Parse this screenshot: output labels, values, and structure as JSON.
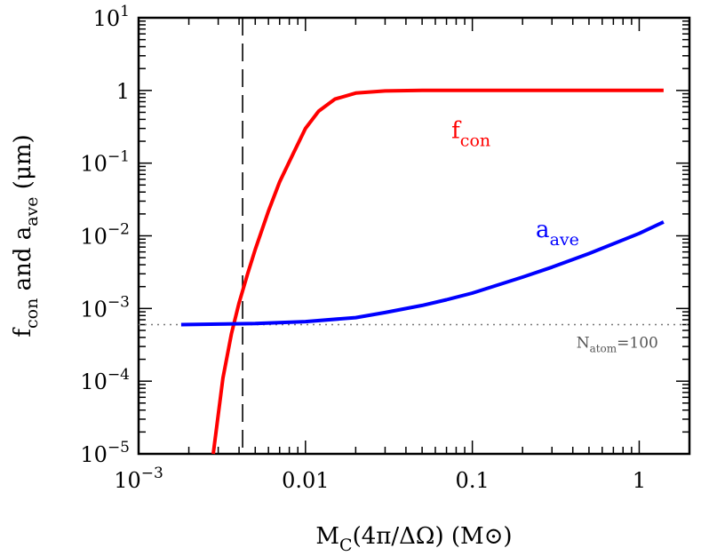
{
  "chart_data": {
    "type": "line",
    "title": "",
    "xlabel": {
      "base": "M",
      "sub": "C",
      "rest": "(4π/ΔΩ) (M",
      "sun": "⊙",
      "close": ")"
    },
    "ylabel": {
      "f": "f",
      "f_sub": "con",
      "mid": " and a",
      "a_sub": "ave",
      "unit": " (μm)"
    },
    "x_scale": "log",
    "y_scale": "log",
    "xlim": [
      0.001,
      2.0
    ],
    "ylim": [
      1e-05,
      10
    ],
    "x_ticks": [
      {
        "value": 0.001,
        "base": "10",
        "exp": "−3"
      },
      {
        "value": 0.01,
        "label": "0.01"
      },
      {
        "value": 0.1,
        "label": "0.1"
      },
      {
        "value": 1,
        "label": "1"
      }
    ],
    "y_ticks": [
      {
        "value": 1e-05,
        "base": "10",
        "exp": "−5"
      },
      {
        "value": 0.0001,
        "base": "10",
        "exp": "−4"
      },
      {
        "value": 0.001,
        "base": "10",
        "exp": "−3"
      },
      {
        "value": 0.01,
        "base": "10",
        "exp": "−2"
      },
      {
        "value": 0.1,
        "base": "10",
        "exp": "−1"
      },
      {
        "value": 1,
        "label": "1"
      },
      {
        "value": 10,
        "base": "10",
        "exp": "1"
      }
    ],
    "series": [
      {
        "label_base": "f",
        "label_sub": "con",
        "color": "#ff0000",
        "label_at": [
          0.075,
          0.22
        ],
        "x": [
          0.0028,
          0.0032,
          0.0036,
          0.004,
          0.0045,
          0.005,
          0.006,
          0.007,
          0.0085,
          0.01,
          0.012,
          0.015,
          0.02,
          0.03,
          0.05,
          0.1,
          0.3,
          1.0,
          1.4
        ],
        "y": [
          1e-05,
          0.00011,
          0.00045,
          0.0012,
          0.003,
          0.0065,
          0.022,
          0.055,
          0.14,
          0.3,
          0.52,
          0.76,
          0.92,
          0.985,
          1.0,
          1.0,
          1.0,
          1.0,
          1.0
        ]
      },
      {
        "label_base": "a",
        "label_sub": "ave",
        "color": "#0000ff",
        "label_at": [
          0.24,
          0.0096
        ],
        "x": [
          0.0018,
          0.003,
          0.005,
          0.01,
          0.02,
          0.03,
          0.05,
          0.07,
          0.1,
          0.2,
          0.3,
          0.5,
          1.0,
          1.4
        ],
        "y": [
          0.0006,
          0.00061,
          0.00062,
          0.00066,
          0.00075,
          0.00088,
          0.0011,
          0.00132,
          0.00163,
          0.0027,
          0.0037,
          0.0057,
          0.0108,
          0.0155
        ]
      }
    ],
    "vline": {
      "x": 0.0042,
      "style": "dashed",
      "color": "#000000"
    },
    "hline": {
      "y": 0.0006,
      "style": "dotted",
      "color": "#777777"
    },
    "annotation": {
      "base": "N",
      "sub": "atom",
      "rest": "=100",
      "at": [
        0.42,
        0.00029
      ]
    }
  }
}
